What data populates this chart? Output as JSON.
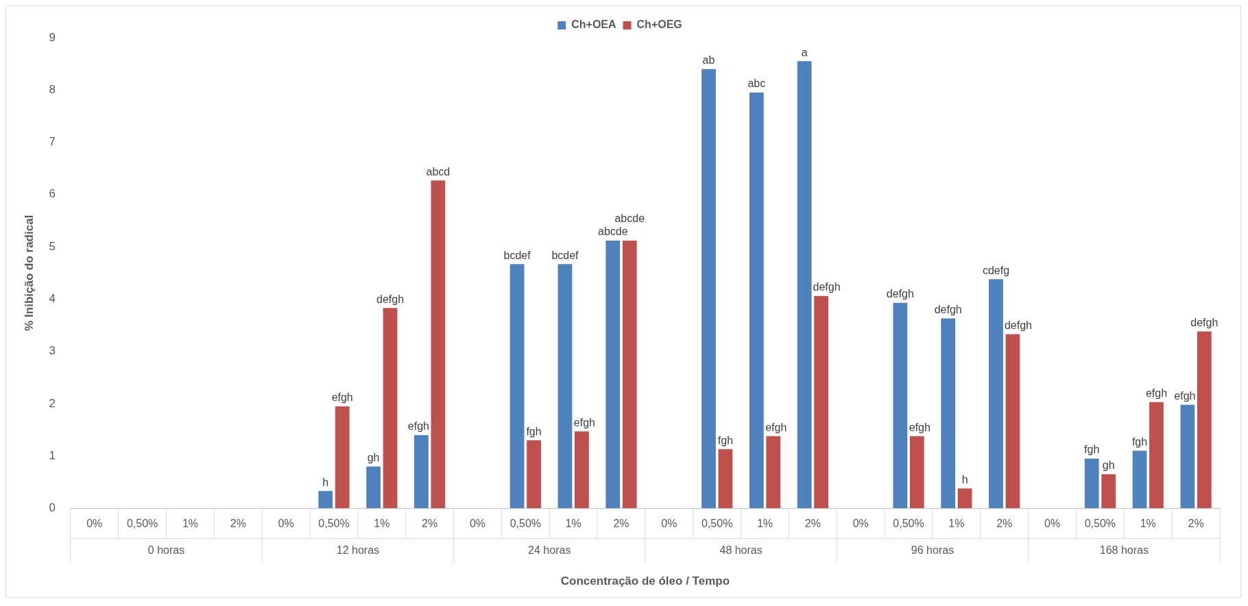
{
  "chart_data": {
    "type": "bar",
    "xlabel": "Concentração de óleo / Tempo",
    "ylabel": "% Inibição do radical",
    "categories": [
      "0%",
      "0,50%",
      "1%",
      "2%",
      "0%",
      "0,50%",
      "1%",
      "2%",
      "0%",
      "0,50%",
      "1%",
      "2%",
      "0%",
      "0,50%",
      "1%",
      "2%",
      "0%",
      "0,50%",
      "1%",
      "2%",
      "0%",
      "0,50%",
      "1%",
      "2%"
    ],
    "annotations": [
      "0 horas",
      "12 horas",
      "24 horas",
      "48 horas",
      "96 horas",
      "168 horas"
    ],
    "series": [
      {
        "name": "Ch+OEA",
        "color": "#4f81bd",
        "values": [
          0,
          0,
          0,
          0,
          0,
          0.33,
          0.8,
          1.4,
          0,
          4.67,
          4.67,
          5.12,
          0,
          8.4,
          7.95,
          8.55,
          0,
          3.93,
          3.63,
          4.38,
          0,
          0.95,
          1.1,
          1.98
        ],
        "value_labels": [
          null,
          null,
          null,
          null,
          null,
          "h",
          "gh",
          "efgh",
          null,
          "bcdef",
          "bcdef",
          "abcde",
          null,
          "ab",
          "abc",
          "a",
          null,
          "defgh",
          "defgh",
          "cdefg",
          null,
          "fgh",
          "fgh",
          "efgh"
        ]
      },
      {
        "name": "Ch+OEG",
        "color": "#c0504d",
        "values": [
          0,
          0,
          0,
          0,
          0,
          1.95,
          3.83,
          6.27,
          0,
          1.3,
          1.47,
          5.12,
          0,
          1.13,
          1.38,
          4.06,
          0,
          1.38,
          0.38,
          3.33,
          0,
          0.65,
          2.03,
          3.38
        ],
        "value_labels": [
          null,
          null,
          null,
          null,
          null,
          "efgh",
          "defgh",
          "abcd",
          null,
          "fgh",
          "efgh",
          "abcde",
          null,
          "fgh",
          "efgh",
          "defgh",
          null,
          "efgh",
          "h",
          "defgh",
          null,
          "gh",
          "efgh",
          "defgh"
        ]
      }
    ],
    "ylim": [
      0,
      9
    ],
    "yticks": [
      0,
      1,
      2,
      3,
      4,
      5,
      6,
      7,
      8,
      9
    ],
    "grid": false,
    "legend": "top"
  }
}
